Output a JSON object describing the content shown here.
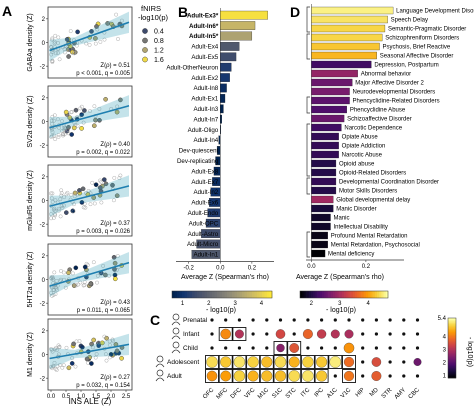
{
  "panel_labels": {
    "A": "A",
    "B": "B",
    "C": "C",
    "D": "D"
  },
  "colors": {
    "teal": "#2a9ab5",
    "inferno": [
      "#000004",
      "#1b0c41",
      "#4a0c6b",
      "#781c6d",
      "#a52c60",
      "#cf4446",
      "#ed6925",
      "#fb9b06",
      "#f7d13d",
      "#fcffa4"
    ],
    "cividis": [
      "#00224e",
      "#123570",
      "#3b496c",
      "#575d6d",
      "#707173",
      "#8a8678",
      "#a59c74",
      "#c3b369",
      "#e1cc55",
      "#fee838"
    ]
  },
  "panel_a": {
    "legend_title": "fNIRS\n-log10(p)",
    "legend_values": [
      "0.4",
      "0.8",
      "1.2",
      "1.6"
    ],
    "xlabel": "INS ALE (Z)",
    "x_ticks": [
      "0.0",
      "0.5",
      "1.0",
      "1.5",
      "2.0",
      "2.5"
    ],
    "y_ticks": [
      "-2",
      "0",
      "2"
    ],
    "subplots": [
      {
        "ylabel": "GABAa density (Z)",
        "stat1": "Z(ρ) = 0.51",
        "stat2": "p < 0.001, q = 0.005"
      },
      {
        "ylabel": "SV2a density (Z)",
        "stat1": "Z(ρ) = 0.40",
        "stat2": "p = 0.002, q = 0.022"
      },
      {
        "ylabel": "mGluR5 density (Z)",
        "stat1": "Z(ρ) = 0.37",
        "stat2": "p = 0.003, q = 0.026"
      },
      {
        "ylabel": "5HT2a density (Z)",
        "stat1": "Z(ρ) = 0.43",
        "stat2": "p = 0.011, q = 0.065"
      },
      {
        "ylabel": "M1 density (Z)",
        "stat1": "Z(ρ) = 0.27",
        "stat2": "p = 0.032, q = 0.154"
      }
    ]
  },
  "panel_b": {
    "xlabel": "Average Z (Spearman's rho)",
    "x_ticks": [
      "-0.2",
      "0.0",
      "0.2"
    ],
    "colorbar_label": "- log10(p)",
    "colorbar_ticks": [
      "1",
      "2",
      "3",
      "4"
    ],
    "chart_data": {
      "type": "bar",
      "orientation": "horizontal",
      "categories": [
        "Adult-Ex3*",
        "Adult-In6*",
        "Adult-In5*",
        "Adult-Ex4",
        "Adult-Ex5",
        "Adult-OtherNeuron",
        "Adult-Ex2",
        "Adult-In8",
        "Adult-Ex1",
        "Adult-In3",
        "Adult-In7",
        "Adult-Oligo",
        "Adult-In4",
        "Dev-quiescent",
        "Dev-replicating",
        "Adult-Ex8",
        "Adult-Ex7",
        "Adult-In2",
        "Adult-Ex6",
        "Adult-Endo",
        "Adult-OPC",
        "Adult-Astro",
        "Adult-Micro",
        "Adult-In1"
      ],
      "values": [
        0.3,
        0.22,
        0.2,
        0.12,
        0.1,
        0.07,
        0.06,
        0.04,
        0.03,
        0.02,
        0.01,
        0.0,
        -0.01,
        -0.02,
        -0.03,
        -0.04,
        -0.05,
        -0.06,
        -0.07,
        -0.08,
        -0.09,
        -0.12,
        -0.15,
        -0.18
      ],
      "neglog10p": [
        4.2,
        3.6,
        3.3,
        2.0,
        1.8,
        1.5,
        1.4,
        1.2,
        1.1,
        1.0,
        0.9,
        0.9,
        0.9,
        1.0,
        1.0,
        1.1,
        1.2,
        1.3,
        1.4,
        1.5,
        1.6,
        1.8,
        1.9,
        2.0
      ],
      "bold": [
        true,
        true,
        true,
        false,
        false,
        false,
        false,
        false,
        false,
        false,
        false,
        false,
        false,
        false,
        false,
        false,
        false,
        false,
        false,
        false,
        false,
        false,
        false,
        false
      ],
      "xlim": [
        -0.28,
        0.34
      ]
    }
  },
  "panel_d": {
    "xlabel": "Average Z (Spearman's rho)",
    "x_ticks": [
      "0.0",
      "0.2"
    ],
    "colorbar_label": "- log10(p)",
    "colorbar_ticks": [
      "2",
      "3",
      "4"
    ],
    "chart_data": {
      "type": "bar",
      "orientation": "horizontal",
      "categories": [
        "Language Development Disorders",
        "Speech Delay",
        "Semantic-Pragmatic Disorder",
        "Schizophreniform Disorders",
        "Psychosis, Brief Reactive",
        "Seasonal Affective Disorder",
        "Depression, Postpartum",
        "Abnormal behavior",
        "Major Affective Disorder 2",
        "Neurodevelopmental Disorders",
        "Phencyclidine-Related Disorders",
        "Phencyclidine Abuse",
        "Schizoaffective Disorder",
        "Narcotic Dependence",
        "Opiate Abuse",
        "Opiate Addiction",
        "Narcotic Abuse",
        "Opioid abuse",
        "Opioid-Related Disorders",
        "Developmental Coordination Disorder",
        "Motor Skills Disorders",
        "Global developmental delay",
        "Manic Disorder",
        "Manic",
        "Intellectual Disability",
        "Profound Mental Retardation",
        "Mental Retardation, Psychosocial",
        "Mental deficiency"
      ],
      "values": [
        0.3,
        0.28,
        0.27,
        0.26,
        0.25,
        0.24,
        0.22,
        0.17,
        0.15,
        0.14,
        0.14,
        0.13,
        0.12,
        0.11,
        0.1,
        0.1,
        0.1,
        0.09,
        0.09,
        0.09,
        0.09,
        0.08,
        0.08,
        0.07,
        0.07,
        0.06,
        0.06,
        0.05
      ],
      "neglog10p": [
        4.6,
        4.5,
        4.4,
        4.4,
        4.3,
        4.2,
        2.3,
        2.9,
        2.6,
        2.7,
        2.5,
        2.4,
        2.6,
        2.3,
        2.2,
        2.2,
        2.2,
        2.1,
        2.1,
        2.2,
        2.1,
        3.0,
        2.0,
        1.9,
        1.9,
        1.8,
        1.8,
        1.7
      ],
      "xlim": [
        -0.02,
        0.34
      ]
    }
  },
  "panel_c": {
    "stage_labels": [
      "Prenatal",
      "Infant",
      "Child",
      "Adolescent",
      "Adult"
    ],
    "regions": [
      "OFC",
      "MFC",
      "DFC",
      "VFC",
      "M1C",
      "S1C",
      "STC",
      "ITC",
      "IPC",
      "A1C",
      "V1C",
      "HIP",
      "MD",
      "STR",
      "AMY",
      "CBC"
    ],
    "colorbar_label": "- log10(p)",
    "colorbar_ticks": [
      "1",
      "2",
      "3",
      "4",
      "5.4"
    ],
    "heatmap_neglog10p": [
      [
        null,
        null,
        null,
        null,
        null,
        null,
        null,
        null,
        null,
        null,
        null,
        null,
        null,
        null,
        null,
        null
      ],
      [
        null,
        4.2,
        3.0,
        null,
        null,
        3.4,
        null,
        3.8,
        3.2,
        3.0,
        2.9,
        null,
        null,
        null,
        null,
        null
      ],
      [
        null,
        null,
        null,
        null,
        null,
        2.5,
        3.6,
        null,
        null,
        null,
        4.3,
        null,
        null,
        null,
        null,
        null
      ],
      [
        5.0,
        4.8,
        5.1,
        4.9,
        4.7,
        5.0,
        4.6,
        4.9,
        4.8,
        5.2,
        3.9,
        null,
        3.5,
        null,
        null,
        2.2
      ],
      [
        4.3,
        4.4,
        4.9,
        4.6,
        4.7,
        4.7,
        5.0,
        5.1,
        4.8,
        null,
        4.0,
        null,
        3.7,
        null,
        null,
        null
      ]
    ],
    "boxed_cells": [
      [
        1,
        1
      ],
      [
        1,
        2
      ],
      [
        2,
        5
      ],
      [
        2,
        6
      ],
      [
        3,
        0
      ],
      [
        3,
        1
      ],
      [
        3,
        2
      ],
      [
        3,
        3
      ],
      [
        3,
        4
      ],
      [
        3,
        5
      ],
      [
        3,
        6
      ],
      [
        3,
        7
      ],
      [
        3,
        8
      ],
      [
        3,
        9
      ],
      [
        3,
        10
      ],
      [
        4,
        0
      ],
      [
        4,
        1
      ],
      [
        4,
        2
      ],
      [
        4,
        3
      ],
      [
        4,
        4
      ],
      [
        4,
        5
      ],
      [
        4,
        6
      ],
      [
        4,
        7
      ],
      [
        4,
        8
      ],
      [
        4,
        10
      ]
    ]
  }
}
